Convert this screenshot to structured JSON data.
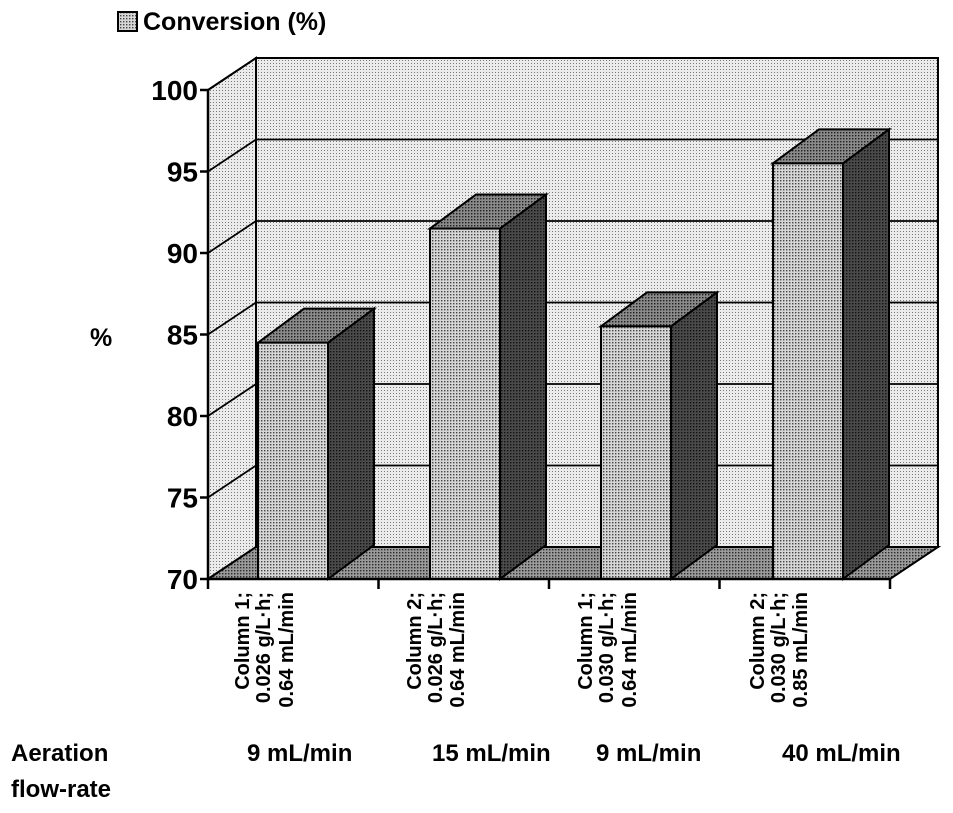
{
  "chart_data": {
    "type": "bar",
    "style": "3d",
    "legend": {
      "label": "Conversion (%)",
      "position": "top-left"
    },
    "ylabel": "%",
    "ylim": [
      70,
      100
    ],
    "yticks": [
      70,
      75,
      80,
      85,
      90,
      95,
      100
    ],
    "grid": true,
    "categories": [
      [
        "Column 1;",
        "0.026 g/L·h;",
        "0.64 mL/min"
      ],
      [
        "Column 2;",
        "0.026 g/L·h;",
        "0.64 mL/min"
      ],
      [
        "Column 1;",
        "0.030 g/L·h;",
        "0.64 mL/min"
      ],
      [
        "Column 2;",
        "0.030 g/L·h;",
        "0.85 mL/min"
      ]
    ],
    "series": [
      {
        "name": "Conversion (%)",
        "values": [
          84.5,
          91.5,
          85.5,
          95.5
        ]
      }
    ],
    "aeration": {
      "label": [
        "Aeration",
        "flow-rate"
      ],
      "values": [
        "9 mL/min",
        "15 mL/min",
        "9 mL/min",
        "40 mL/min"
      ]
    },
    "colors": {
      "front": "#c4c4c4",
      "side": "#3c3c3c",
      "top": "#7a7a7a",
      "wall": "#dedede",
      "floor": "#8c8c8c"
    }
  }
}
